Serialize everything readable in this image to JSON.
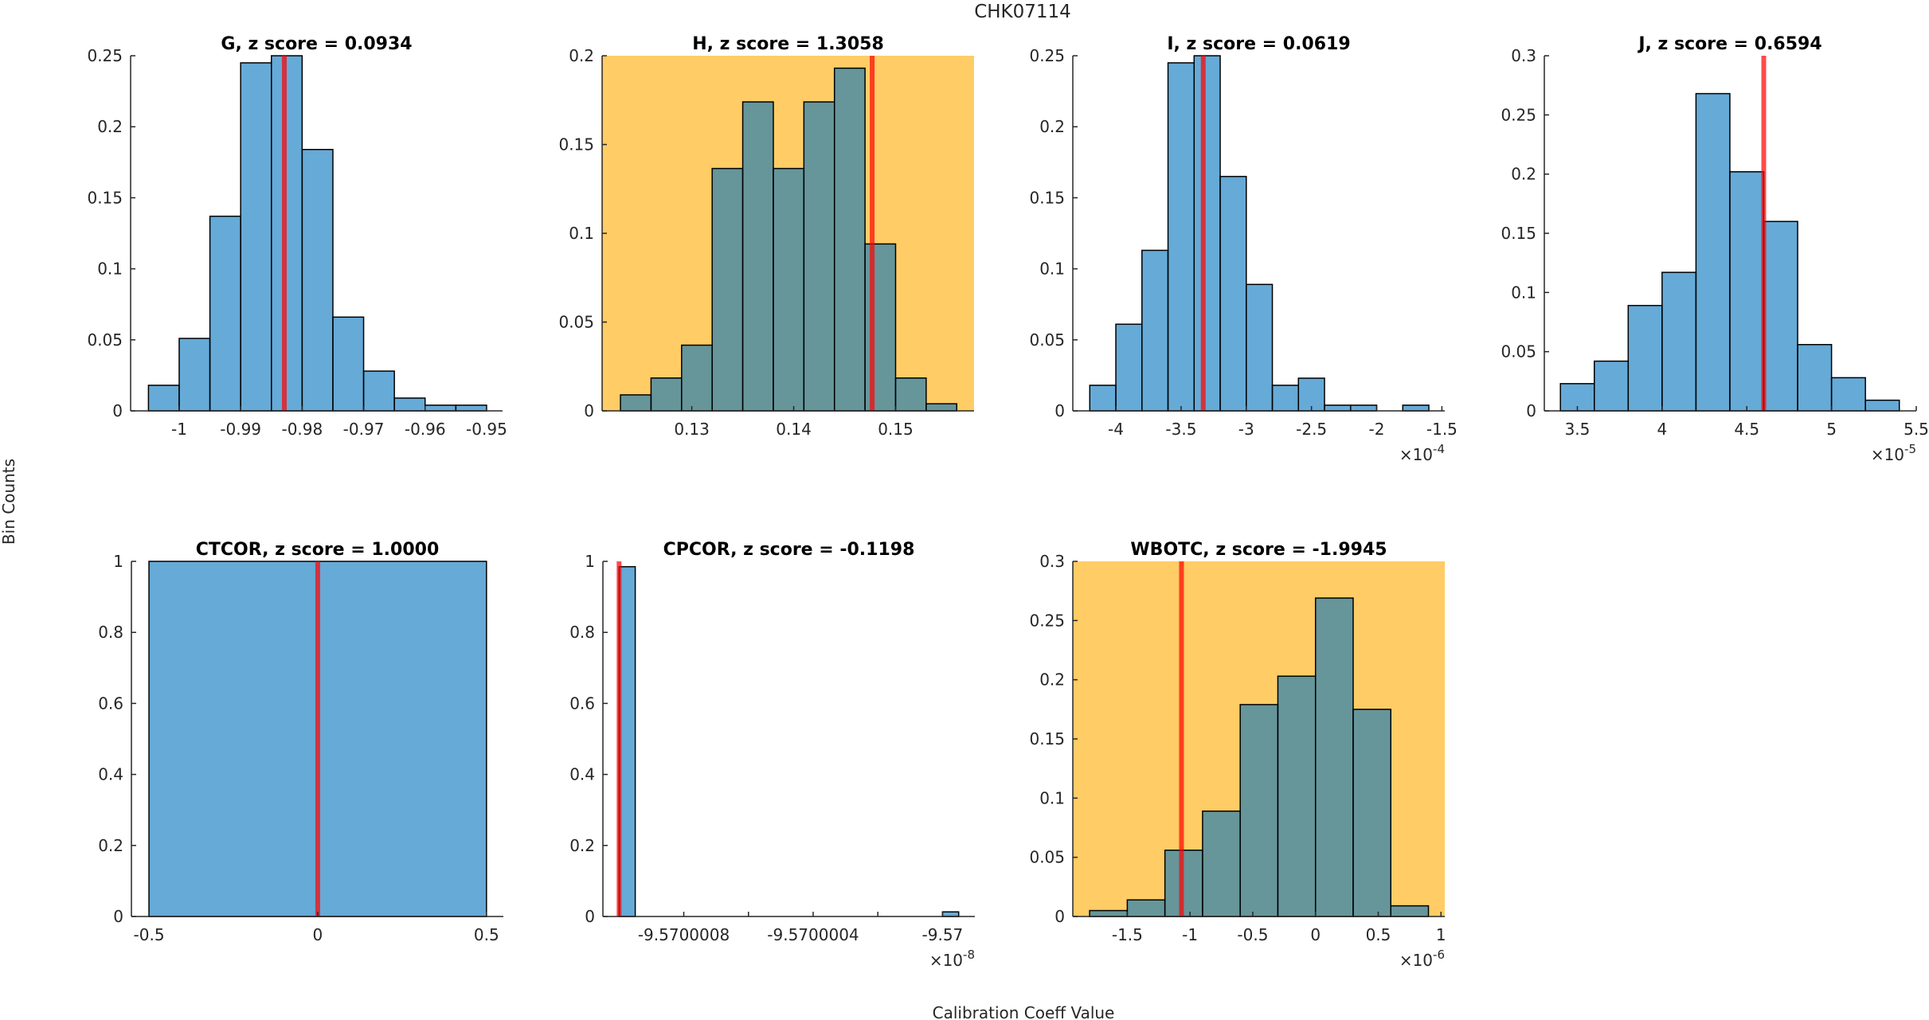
{
  "figure": {
    "sup_title": "CHK07114",
    "ylabel": "Bin Counts",
    "xlabel": "Calibration Coeff Value",
    "colors": {
      "bar_face": "#0072BD",
      "bar_alpha": 0.6,
      "bar_edge": "#000000",
      "marker_line": "#FF0000",
      "marker_alpha": 0.7,
      "highlight_background": "#FFCC66",
      "axis": "#262626"
    }
  },
  "chart_data": [
    {
      "type": "bar",
      "subtype": "histogram",
      "title": "G, z score = 0.0934",
      "highlighted": false,
      "bin_edges": [
        -1.005,
        -1.0,
        -0.995,
        -0.99,
        -0.985,
        -0.98,
        -0.975,
        -0.97,
        -0.965,
        -0.96,
        -0.955,
        -0.95
      ],
      "values": [
        0.018,
        0.051,
        0.137,
        0.245,
        0.25,
        0.184,
        0.066,
        0.028,
        0.009,
        0.004,
        0.004
      ],
      "marker_x": -0.9829,
      "xlim": [
        -1.0079,
        -0.9474
      ],
      "ylim": [
        0,
        0.25
      ],
      "xticks": [
        -1.0,
        -0.99,
        -0.98,
        -0.97,
        -0.96,
        -0.95
      ],
      "xtick_labels": [
        "-1",
        "-0.99",
        "-0.98",
        "-0.97",
        "-0.96",
        "-0.95"
      ],
      "yticks": [
        0,
        0.05,
        0.1,
        0.15,
        0.2,
        0.25
      ],
      "ytick_labels": [
        "0",
        "0.05",
        "0.1",
        "0.15",
        "0.2",
        "0.25"
      ],
      "x_exponent": null
    },
    {
      "type": "bar",
      "subtype": "histogram",
      "title": "H, z score = 1.3058",
      "highlighted": true,
      "bin_edges": [
        0.123,
        0.126,
        0.129,
        0.132,
        0.135,
        0.138,
        0.141,
        0.144,
        0.147,
        0.15,
        0.153,
        0.156
      ],
      "values": [
        0.009,
        0.0185,
        0.037,
        0.1365,
        0.174,
        0.1365,
        0.174,
        0.193,
        0.094,
        0.0185,
        0.004
      ],
      "marker_x": 0.1477,
      "xlim": [
        0.1212,
        0.1577
      ],
      "ylim": [
        0,
        0.2
      ],
      "xticks": [
        0.13,
        0.14,
        0.15
      ],
      "xtick_labels": [
        "0.13",
        "0.14",
        "0.15"
      ],
      "yticks": [
        0,
        0.05,
        0.1,
        0.15,
        0.2
      ],
      "ytick_labels": [
        "0",
        "0.05",
        "0.1",
        "0.15",
        "0.2"
      ],
      "x_exponent": null
    },
    {
      "type": "bar",
      "subtype": "histogram",
      "title": "I, z score = 0.0619",
      "highlighted": false,
      "bin_edges": [
        -4.2,
        -4.0,
        -3.8,
        -3.6,
        -3.4,
        -3.2,
        -3.0,
        -2.8,
        -2.6,
        -2.4,
        -2.2,
        -2.0,
        -1.8,
        -1.6
      ],
      "values": [
        0.018,
        0.061,
        0.113,
        0.245,
        0.25,
        0.165,
        0.089,
        0.018,
        0.023,
        0.004,
        0.004,
        0.0,
        0.004
      ],
      "marker_x": -3.33,
      "xlim": [
        -4.33,
        -1.478
      ],
      "ylim": [
        0,
        0.25
      ],
      "xticks": [
        -4.0,
        -3.5,
        -3.0,
        -2.5,
        -2.0,
        -1.5
      ],
      "xtick_labels": [
        "-4",
        "-3.5",
        "-3",
        "-2.5",
        "-2",
        "-1.5"
      ],
      "yticks": [
        0,
        0.05,
        0.1,
        0.15,
        0.2,
        0.25
      ],
      "ytick_labels": [
        "0",
        "0.05",
        "0.1",
        "0.15",
        "0.2",
        "0.25"
      ],
      "x_exponent": "-4"
    },
    {
      "type": "bar",
      "subtype": "histogram",
      "title": "J, z score = 0.6594",
      "highlighted": false,
      "bin_edges": [
        3.4,
        3.6,
        3.8,
        4.0,
        4.2,
        4.4,
        4.6,
        4.8,
        5.0,
        5.2,
        5.4
      ],
      "values": [
        0.023,
        0.042,
        0.089,
        0.117,
        0.268,
        0.202,
        0.16,
        0.056,
        0.028,
        0.009
      ],
      "marker_x": 4.6,
      "xlim": [
        3.305,
        5.5
      ],
      "ylim": [
        0,
        0.3
      ],
      "xticks": [
        3.5,
        4.0,
        4.5,
        5.0,
        5.5
      ],
      "xtick_labels": [
        "3.5",
        "4",
        "4.5",
        "5",
        "5.5"
      ],
      "yticks": [
        0,
        0.05,
        0.1,
        0.15,
        0.2,
        0.25,
        0.3
      ],
      "ytick_labels": [
        "0",
        "0.05",
        "0.1",
        "0.15",
        "0.2",
        "0.25",
        "0.3"
      ],
      "x_exponent": "-5"
    },
    {
      "type": "bar",
      "subtype": "histogram",
      "title": "CTCOR, z score = 1.0000",
      "highlighted": false,
      "bin_edges": [
        -0.5,
        0.5
      ],
      "values": [
        1.0
      ],
      "marker_x": 0.0,
      "xlim": [
        -0.552,
        0.55
      ],
      "ylim": [
        0,
        1
      ],
      "xticks": [
        -0.5,
        0.0,
        0.5
      ],
      "xtick_labels": [
        "-0.5",
        "0",
        "0.5"
      ],
      "yticks": [
        0,
        0.2,
        0.4,
        0.6,
        0.8,
        1.0
      ],
      "ytick_labels": [
        "0",
        "0.2",
        "0.4",
        "0.6",
        "0.8",
        "1"
      ],
      "x_exponent": null
    },
    {
      "type": "bar",
      "subtype": "histogram",
      "title": "CPCOR, z score = -0.1198",
      "highlighted": false,
      "bins": [
        {
          "start": -9.570001,
          "end": -9.57000095,
          "value": 0.985
        },
        {
          "start": -9.57,
          "end": -9.56999995,
          "value": 0.013
        }
      ],
      "marker_x": -9.570001,
      "xlim": [
        -9.57000105,
        -9.5699999
      ],
      "ylim": [
        0,
        1
      ],
      "xticks": [
        -9.5700008,
        -9.5700006,
        -9.5700004,
        -9.5700002,
        -9.57
      ],
      "xtick_labels": [
        "-9.5700008",
        "",
        "-9.5700004",
        "",
        "-9.57"
      ],
      "yticks": [
        0,
        0.2,
        0.4,
        0.6,
        0.8,
        1.0
      ],
      "ytick_labels": [
        "0",
        "0.2",
        "0.4",
        "0.6",
        "0.8",
        "1"
      ],
      "x_exponent": "-8"
    },
    {
      "type": "bar",
      "subtype": "histogram",
      "title": "WBOTC, z score = -1.9945",
      "highlighted": true,
      "bin_edges": [
        -1.8,
        -1.5,
        -1.2,
        -0.9,
        -0.6,
        -0.3,
        0.0,
        0.3,
        0.6,
        0.9
      ],
      "values": [
        0.005,
        0.014,
        0.056,
        0.089,
        0.179,
        0.203,
        0.269,
        0.175,
        0.009
      ],
      "marker_x": -1.068,
      "xlim": [
        -1.934,
        1.03
      ],
      "ylim": [
        0,
        0.3
      ],
      "xticks": [
        -1.5,
        -1.0,
        -0.5,
        0.0,
        0.5,
        1.0
      ],
      "xtick_labels": [
        "-1.5",
        "-1",
        "-0.5",
        "0",
        "0.5",
        "1"
      ],
      "yticks": [
        0,
        0.05,
        0.1,
        0.15,
        0.2,
        0.25,
        0.3
      ],
      "ytick_labels": [
        "0",
        "0.05",
        "0.1",
        "0.15",
        "0.2",
        "0.25",
        "0.3"
      ],
      "x_exponent": "-6"
    }
  ]
}
